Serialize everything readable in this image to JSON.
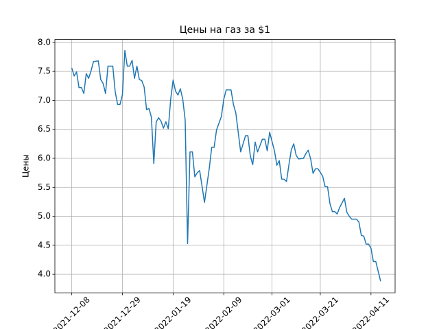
{
  "chart_data": {
    "type": "line",
    "title": "Цены на газ за $1",
    "ylabel": "Цены",
    "color": "#1f77b4",
    "grid": true,
    "x": [
      "2021-12-08",
      "2021-12-09",
      "2021-12-10",
      "2021-12-11",
      "2021-12-12",
      "2021-12-13",
      "2021-12-14",
      "2021-12-15",
      "2021-12-16",
      "2021-12-17",
      "2021-12-19",
      "2021-12-20",
      "2021-12-21",
      "2021-12-22",
      "2021-12-23",
      "2021-12-25",
      "2021-12-26",
      "2021-12-27",
      "2021-12-28",
      "2021-12-29",
      "2021-12-30",
      "2021-12-31",
      "2022-01-01",
      "2022-01-02",
      "2022-01-03",
      "2022-01-04",
      "2022-01-05",
      "2022-01-06",
      "2022-01-07",
      "2022-01-08",
      "2022-01-09",
      "2022-01-10",
      "2022-01-11",
      "2022-01-12",
      "2022-01-13",
      "2022-01-14",
      "2022-01-15",
      "2022-01-16",
      "2022-01-17",
      "2022-01-18",
      "2022-01-19",
      "2022-01-20",
      "2022-01-21",
      "2022-01-22",
      "2022-01-23",
      "2022-01-24",
      "2022-01-25",
      "2022-01-26",
      "2022-01-27",
      "2022-01-28",
      "2022-01-29",
      "2022-01-30",
      "2022-02-01",
      "2022-02-03",
      "2022-02-04",
      "2022-02-05",
      "2022-02-06",
      "2022-02-08",
      "2022-02-09",
      "2022-02-10",
      "2022-02-12",
      "2022-02-13",
      "2022-02-14",
      "2022-02-16",
      "2022-02-17",
      "2022-02-18",
      "2022-02-19",
      "2022-02-20",
      "2022-02-21",
      "2022-02-22",
      "2022-02-23",
      "2022-02-24",
      "2022-02-25",
      "2022-02-26",
      "2022-02-27",
      "2022-02-28",
      "2022-03-02",
      "2022-03-03",
      "2022-03-04",
      "2022-03-05",
      "2022-03-06",
      "2022-03-07",
      "2022-03-08",
      "2022-03-09",
      "2022-03-10",
      "2022-03-11",
      "2022-03-12",
      "2022-03-14",
      "2022-03-15",
      "2022-03-16",
      "2022-03-17",
      "2022-03-18",
      "2022-03-19",
      "2022-03-20",
      "2022-03-21",
      "2022-03-22",
      "2022-03-23",
      "2022-03-24",
      "2022-03-25",
      "2022-03-26",
      "2022-03-27",
      "2022-03-28",
      "2022-03-29",
      "2022-03-31",
      "2022-04-01",
      "2022-04-02",
      "2022-04-03",
      "2022-04-05",
      "2022-04-06",
      "2022-04-07",
      "2022-04-08",
      "2022-04-09",
      "2022-04-10",
      "2022-04-11",
      "2022-04-12",
      "2022-04-13",
      "2022-04-14",
      "2022-04-15"
    ],
    "values": [
      7.56,
      7.42,
      7.49,
      7.22,
      7.22,
      7.12,
      7.46,
      7.38,
      7.51,
      7.67,
      7.68,
      7.36,
      7.29,
      7.12,
      7.59,
      7.59,
      7.15,
      6.93,
      6.93,
      7.1,
      7.86,
      7.59,
      7.59,
      7.69,
      7.38,
      7.59,
      7.36,
      7.34,
      7.23,
      6.84,
      6.86,
      6.71,
      5.91,
      6.63,
      6.7,
      6.64,
      6.52,
      6.63,
      6.51,
      7.02,
      7.35,
      7.16,
      7.09,
      7.2,
      7.02,
      6.66,
      4.53,
      6.11,
      6.11,
      5.68,
      5.75,
      5.79,
      5.24,
      5.83,
      6.19,
      6.19,
      6.49,
      6.72,
      7.02,
      7.18,
      7.18,
      6.93,
      6.78,
      6.11,
      6.25,
      6.39,
      6.39,
      6.04,
      5.89,
      6.28,
      6.11,
      6.22,
      6.33,
      6.33,
      6.13,
      6.45,
      6.13,
      5.88,
      5.96,
      5.64,
      5.64,
      5.6,
      5.89,
      6.15,
      6.25,
      6.05,
      5.99,
      6.0,
      6.08,
      6.14,
      5.99,
      5.74,
      5.82,
      5.82,
      5.76,
      5.69,
      5.51,
      5.51,
      5.22,
      5.08,
      5.08,
      5.04,
      5.15,
      5.31,
      5.07,
      5.0,
      4.95,
      4.95,
      4.9,
      4.67,
      4.66,
      4.52,
      4.52,
      4.45,
      4.22,
      4.22,
      4.05,
      3.88
    ],
    "xlim": [
      "2021-12-01",
      "2022-04-21"
    ],
    "xticks": [
      "2021-12-08",
      "2021-12-29",
      "2022-01-19",
      "2022-02-09",
      "2022-03-01",
      "2022-03-21",
      "2022-04-11"
    ],
    "ylim": [
      3.68,
      8.05
    ],
    "yticks": [
      {
        "value": 4,
        "label": "4.0"
      },
      4.5,
      {
        "value": 5,
        "label": "5.0"
      },
      5.5,
      {
        "value": 6,
        "label": "6.0"
      },
      6.5,
      {
        "value": 7,
        "label": "7.0"
      },
      7.5,
      {
        "value": 8,
        "label": "8.0"
      }
    ]
  }
}
